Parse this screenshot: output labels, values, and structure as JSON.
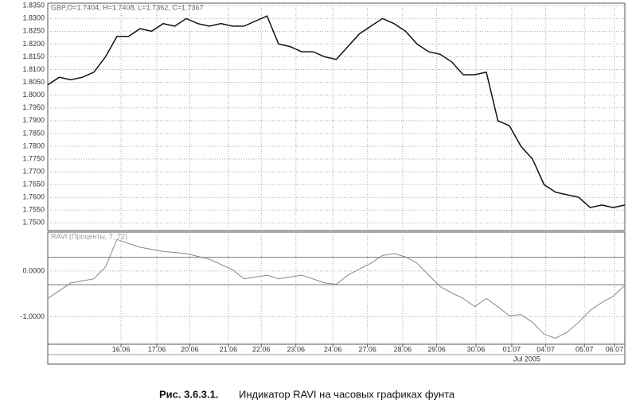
{
  "chart_data": [
    {
      "type": "line",
      "title": "GBP,O=1.7404, H=1.7408, L=1.7362, C=1.7367",
      "color": "#111111",
      "x": [
        0,
        2,
        4,
        6,
        8,
        10,
        12,
        14,
        16,
        18,
        20,
        22,
        24,
        26,
        28,
        30,
        32,
        34,
        36,
        38,
        40,
        42,
        44,
        46,
        48,
        50,
        52,
        54,
        56,
        58,
        60,
        62,
        64,
        66,
        68,
        70,
        72,
        74,
        76,
        78,
        80,
        82,
        84,
        86,
        88,
        90,
        92,
        94,
        96,
        98,
        100
      ],
      "values": [
        1.804,
        1.807,
        1.806,
        1.807,
        1.809,
        1.815,
        1.823,
        1.823,
        1.826,
        1.825,
        1.828,
        1.827,
        1.83,
        1.828,
        1.827,
        1.828,
        1.827,
        1.827,
        1.829,
        1.831,
        1.82,
        1.819,
        1.817,
        1.817,
        1.815,
        1.814,
        1.819,
        1.824,
        1.827,
        1.83,
        1.828,
        1.825,
        1.82,
        1.817,
        1.816,
        1.813,
        1.808,
        1.808,
        1.809,
        1.79,
        1.788,
        1.78,
        1.775,
        1.765,
        1.762,
        1.761,
        1.76,
        1.756,
        1.757,
        1.756,
        1.757
      ],
      "xlim": [
        0,
        100
      ],
      "ylim": [
        1.747,
        1.836
      ],
      "grid": true,
      "yticks": [
        {
          "value": 1.835,
          "label": "1.8350"
        },
        {
          "value": 1.83,
          "label": "1.8300"
        },
        {
          "value": 1.825,
          "label": "1.8250"
        },
        {
          "value": 1.82,
          "label": "1.8200"
        },
        {
          "value": 1.815,
          "label": "1.8150"
        },
        {
          "value": 1.81,
          "label": "1.8100"
        },
        {
          "value": 1.805,
          "label": "1.8050"
        },
        {
          "value": 1.8,
          "label": "1.8000"
        },
        {
          "value": 1.795,
          "label": "1.7950"
        },
        {
          "value": 1.79,
          "label": "1.7900"
        },
        {
          "value": 1.785,
          "label": "1.7850"
        },
        {
          "value": 1.78,
          "label": "1.7800"
        },
        {
          "value": 1.775,
          "label": "1.7750"
        },
        {
          "value": 1.77,
          "label": "1.7700"
        },
        {
          "value": 1.765,
          "label": "1.7650"
        },
        {
          "value": 1.76,
          "label": "1.7600"
        },
        {
          "value": 1.755,
          "label": "1.7550"
        },
        {
          "value": 1.75,
          "label": "1.7500"
        }
      ]
    },
    {
      "type": "line",
      "title": "RAVI (Проценты, 7, 72)",
      "color": "#888888",
      "x": [
        0,
        4,
        8,
        10,
        12,
        14,
        16,
        20,
        24,
        28,
        32,
        34,
        38,
        40,
        44,
        48,
        50,
        52,
        56,
        58,
        60,
        62,
        64,
        66,
        68,
        70,
        72,
        74,
        76,
        78,
        80,
        82,
        84,
        86,
        88,
        90,
        92,
        94,
        96,
        98,
        100
      ],
      "values": [
        -0.6,
        -0.26,
        -0.17,
        0.09,
        0.69,
        0.6,
        0.52,
        0.43,
        0.38,
        0.26,
        0.03,
        -0.17,
        -0.09,
        -0.17,
        -0.09,
        -0.26,
        -0.29,
        -0.09,
        0.17,
        0.34,
        0.38,
        0.31,
        0.17,
        -0.09,
        -0.34,
        -0.48,
        -0.6,
        -0.78,
        -0.6,
        -0.78,
        -0.98,
        -0.95,
        -1.12,
        -1.38,
        -1.47,
        -1.34,
        -1.12,
        -0.86,
        -0.69,
        -0.55,
        -0.31
      ],
      "xlim": [
        0,
        100
      ],
      "ylim": [
        -1.6,
        0.85
      ],
      "grid": true,
      "levels": [
        0.3,
        -0.3
      ],
      "yticks": [
        {
          "value": 0,
          "label": "0.0000"
        },
        {
          "value": -1,
          "label": "-1.0000"
        }
      ],
      "xticks": [
        {
          "value": 12.7,
          "label": "16.06"
        },
        {
          "value": 18.9,
          "label": "17.06"
        },
        {
          "value": 24.6,
          "label": "20.06"
        },
        {
          "value": 31.3,
          "label": "21.06"
        },
        {
          "value": 37.0,
          "label": "22.06"
        },
        {
          "value": 43.0,
          "label": "23.06"
        },
        {
          "value": 49.4,
          "label": "24.06"
        },
        {
          "value": 55.4,
          "label": "27.06"
        },
        {
          "value": 61.5,
          "label": "28.06"
        },
        {
          "value": 67.4,
          "label": "29.06"
        },
        {
          "value": 74.2,
          "label": "30.06"
        },
        {
          "value": 80.4,
          "label": "01.07"
        },
        {
          "value": 86.3,
          "label": "04.07"
        },
        {
          "value": 93.0,
          "label": "05.07"
        },
        {
          "value": 98.2,
          "label": "06.07"
        }
      ],
      "period_label": "Jul 2005"
    }
  ],
  "caption": {
    "number": "Рис. 3.6.3.1.",
    "text": "Индикатор RAVI на часовых графиках фунта"
  }
}
